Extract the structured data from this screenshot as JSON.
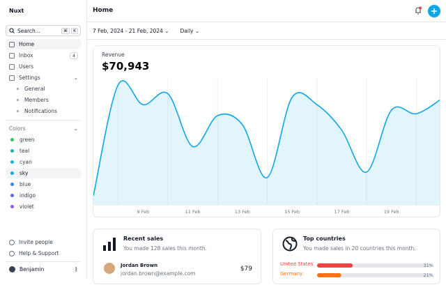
{
  "sidebar": {
    "brand": "Nuxt",
    "search": "Search...",
    "shortcut": [
      "⌘",
      "K"
    ],
    "nav": [
      {
        "label": "Home"
      },
      {
        "label": "Inbox",
        "badge": "4"
      },
      {
        "label": "Users"
      },
      {
        "label": "Settings"
      }
    ],
    "settings": [
      "General",
      "Members",
      "Notifications"
    ],
    "colors_title": "Colors",
    "colors": [
      {
        "label": "green",
        "color": "#22c55e"
      },
      {
        "label": "teal",
        "color": "#14b8a6"
      },
      {
        "label": "cyan",
        "color": "#06b6d4"
      },
      {
        "label": "sky",
        "color": "#0ea5e9"
      },
      {
        "label": "blue",
        "color": "#3b82f6"
      },
      {
        "label": "indigo",
        "color": "#6366f1"
      },
      {
        "label": "violet",
        "color": "#8b5cf6"
      }
    ],
    "footer": [
      "Invite people",
      "Help & Support"
    ],
    "user": "Benjamin"
  },
  "header": {
    "title": "Home"
  },
  "toolbar": {
    "date_range": "7 Feb, 2024 - 21 Feb, 2024",
    "period": "Daily"
  },
  "chart_data": {
    "type": "area",
    "title": "Revenue",
    "subtitle": "$70,943",
    "color": "#0ea5e9",
    "categories": [
      null,
      null,
      "9 Feb",
      null,
      "11 Feb",
      null,
      "13 Feb",
      null,
      "15 Feb",
      null,
      "17 Feb",
      null,
      "19 Feb",
      null,
      null
    ],
    "values": [
      500,
      6600,
      5500,
      6100,
      3200,
      4900,
      4400,
      1500,
      5900,
      5500,
      4100,
      1800,
      5200,
      5000,
      5800
    ],
    "ylim": [
      0,
      7000
    ]
  },
  "cards": {
    "sales": {
      "title": "Recent sales",
      "subtitle": "You made 128 sales this month.",
      "rows": [
        {
          "name": "Jordan Brown",
          "email": "jordan.brown@example.com",
          "amount": "$79"
        }
      ]
    },
    "countries": {
      "title": "Top countries",
      "subtitle": "You made sales in 20 countries this month.",
      "countries": [
        "United States",
        "Germany"
      ],
      "colors": [
        "#ef4444",
        "#f97316"
      ],
      "values": [
        31,
        21
      ],
      "value_labels": [
        "31%",
        "21%"
      ]
    }
  }
}
